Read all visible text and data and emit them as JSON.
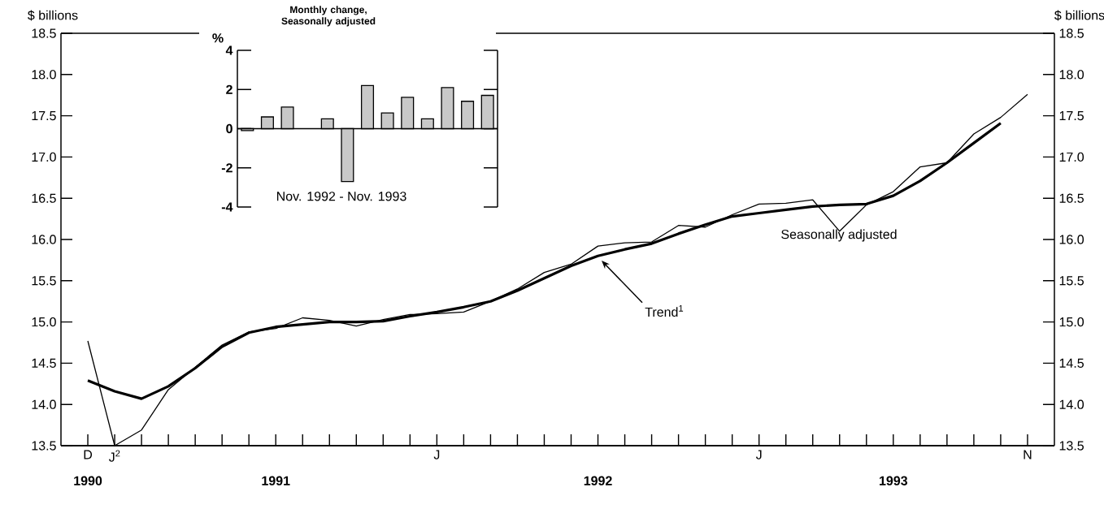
{
  "chart_data": [
    {
      "type": "line",
      "ylabel": "$ billions",
      "y2label": "$ billions",
      "marker": "none",
      "line_style": "solid",
      "categories": [
        "D",
        "J$^{2}$",
        null,
        null,
        null,
        null,
        null,
        null,
        null,
        null,
        null,
        null,
        null,
        "J",
        null,
        null,
        null,
        null,
        null,
        null,
        null,
        null,
        null,
        null,
        null,
        "J",
        null,
        null,
        null,
        null,
        null,
        null,
        null,
        null,
        null,
        "N"
      ],
      "series": [
        {
          "color": "#000000",
          "values": [
            14.29,
            14.16,
            14.07,
            14.22,
            14.44,
            14.7,
            14.87,
            14.94,
            14.97,
            15.0,
            15.0,
            15.01,
            15.07,
            15.12,
            15.18,
            15.25,
            15.38,
            15.53,
            15.68,
            15.8,
            15.88,
            15.95,
            16.07,
            16.18,
            16.28,
            16.32,
            16.36,
            16.4,
            16.42,
            16.43,
            16.53,
            16.71,
            16.93,
            17.17,
            17.41,
            null
          ]
        },
        {
          "color": "#000000",
          "values": [
            14.77,
            13.5,
            13.69,
            14.18,
            14.45,
            14.72,
            14.88,
            14.92,
            15.05,
            15.02,
            14.95,
            15.03,
            15.09,
            15.1,
            15.12,
            15.25,
            15.4,
            15.6,
            15.7,
            15.92,
            15.96,
            15.97,
            16.17,
            16.15,
            16.3,
            16.43,
            16.44,
            16.48,
            16.1,
            16.42,
            16.58,
            16.88,
            16.93,
            17.28,
            17.48,
            17.76
          ]
        }
      ],
      "x2lim": [
        "1990-11",
        "1993-12"
      ],
      "x2ticks": [
        {
          "value": "1990-12",
          "label": "1990"
        },
        {
          "value": "1991-07",
          "label": "1991"
        },
        {
          "value": "1992-07",
          "label": "1992"
        },
        {
          "value": "1993-06",
          "label": "1993"
        }
      ],
      "ylim": [
        13.5,
        18.5
      ],
      "yticks": [
        13.5,
        {
          "value": 14,
          "label": "14.0"
        },
        14.5,
        {
          "value": 15,
          "label": "15.0"
        },
        15.5,
        {
          "value": 16,
          "label": "16.0"
        },
        16.5,
        {
          "value": 17,
          "label": "17.0"
        },
        17.5,
        {
          "value": 18,
          "label": "18.0"
        },
        18.5
      ],
      "y2lim": [
        13.5,
        18.5
      ],
      "y2ticks": [
        13.5,
        {
          "value": 14,
          "label": "14.0"
        },
        14.5,
        {
          "value": 15,
          "label": "15.0"
        },
        15.5,
        {
          "value": 16,
          "label": "16.0"
        },
        16.5,
        {
          "value": 17,
          "label": "17.0"
        },
        17.5,
        {
          "value": 18,
          "label": "18.0"
        },
        18.5
      ],
      "annotations": [
        "Trend$^{1}$",
        "Seasonally adjusted"
      ]
    },
    {
      "type": "bar",
      "title": "Monthly change, Seasonally adjusted",
      "ylabel": "%",
      "xlabel": "Nov. 1992 - Nov. 1993",
      "color": "#c8c8c8",
      "categories": [
        null,
        null,
        null,
        null,
        null,
        null,
        null,
        null,
        null,
        null,
        null,
        null,
        null
      ],
      "values": [
        -0.1,
        0.6,
        1.1,
        null,
        0.5,
        -2.7,
        2.2,
        0.8,
        1.6,
        0.5,
        2.1,
        1.4,
        1.7
      ],
      "ylim": [
        -4,
        4
      ],
      "yticks": [
        -4,
        -2,
        0,
        2,
        4
      ]
    }
  ]
}
